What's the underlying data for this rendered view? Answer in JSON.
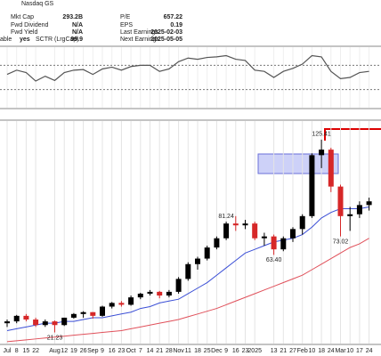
{
  "header": {
    "exchange": "Nasdaq GS",
    "side": {
      "label": "able",
      "value": "yes"
    },
    "fields": [
      [
        {
          "label": "Mkt Cap",
          "value": "293.2B"
        },
        {
          "label": "P/E",
          "value": "657.22"
        }
      ],
      [
        {
          "label": "Fwd Dividend",
          "value": "N/A"
        },
        {
          "label": "EPS",
          "value": "0.19"
        }
      ],
      [
        {
          "label": "Fwd Yield",
          "value": "N/A"
        },
        {
          "label": "Last Earnings",
          "value": "2025-02-03"
        }
      ],
      [
        {
          "label": "SCTR (LrgCap)",
          "value": "99.9"
        },
        {
          "label": "Next Earnings",
          "value": "2025-05-05"
        }
      ]
    ]
  },
  "chart_data": {
    "type": "candlestick",
    "categories": [
      "Jul",
      "8",
      "15",
      "22",
      null,
      "Aug",
      "12",
      "19",
      "26",
      "Sep",
      "9",
      "16",
      "23",
      "Oct",
      "7",
      "14",
      "21",
      "28",
      "Nov",
      "11",
      "18",
      "25",
      "Dec",
      "9",
      "16",
      "23",
      "2025",
      null,
      "13",
      "21",
      "27",
      "Feb",
      "10",
      "18",
      "24",
      "Mar",
      "10",
      "17",
      "24"
    ],
    "open": [
      26,
      27,
      30,
      28,
      25,
      27,
      25,
      29,
      31,
      32,
      30,
      35,
      37,
      36,
      40,
      42,
      43,
      41,
      43,
      50,
      58,
      61,
      67,
      72,
      80,
      79,
      80,
      72,
      73,
      66,
      72,
      77,
      84,
      117,
      120,
      100,
      84,
      85,
      90
    ],
    "high": [
      28,
      30.5,
      31,
      29,
      28,
      27.5,
      29,
      31.5,
      32.5,
      32,
      35.5,
      37.5,
      38,
      41,
      42.5,
      44,
      43.5,
      44,
      51,
      59,
      62,
      68,
      73,
      81,
      84,
      82,
      81,
      75,
      74,
      73,
      78,
      85,
      118,
      125.41,
      121,
      101,
      89,
      92,
      94
    ],
    "low": [
      24,
      26,
      27,
      24,
      24,
      21,
      24.5,
      28.5,
      29,
      28.5,
      29.5,
      34,
      35,
      35.5,
      39,
      41,
      39.5,
      40,
      42,
      49,
      55,
      60,
      66,
      71,
      76,
      77,
      71,
      68,
      63,
      65,
      70,
      74,
      83,
      110,
      97,
      73,
      76,
      83,
      87
    ],
    "close": [
      27,
      30,
      28,
      25,
      27,
      25,
      29,
      31,
      32,
      30,
      35,
      37,
      36,
      40,
      42,
      43,
      41,
      43,
      50,
      58,
      61,
      67,
      72,
      80,
      79,
      80,
      72,
      73,
      66,
      72,
      77,
      84,
      117,
      120,
      100,
      84,
      85,
      90,
      92
    ],
    "up_color": "#000000",
    "down_color": "#d62728",
    "series": [
      {
        "color": "#3b4fd6",
        "values": [
          22,
          23,
          24,
          25,
          26,
          26,
          27,
          27,
          28,
          29,
          29,
          30,
          31,
          32,
          34,
          35,
          37,
          38,
          39,
          42,
          45,
          48,
          52,
          56,
          60,
          64,
          66,
          68,
          70,
          71,
          72,
          74,
          78,
          83,
          86,
          88,
          88,
          88,
          89
        ]
      },
      {
        "color": "#e0505a",
        "values": [
          16,
          16.5,
          17,
          17.5,
          18,
          18.5,
          19,
          19.5,
          20,
          20.5,
          21,
          21.5,
          22,
          23,
          24,
          25,
          26,
          27,
          28,
          29.5,
          31,
          32.5,
          34,
          36,
          38,
          40,
          42,
          44,
          46,
          48,
          50,
          52,
          55,
          58,
          61,
          64,
          67,
          69,
          72
        ]
      }
    ],
    "annotations": [
      {
        "candle": 5,
        "side": "low",
        "text": "21.23"
      },
      {
        "candle": 23,
        "side": "high",
        "text": "81.24"
      },
      {
        "candle": 28,
        "side": "low",
        "text": "63.40"
      },
      {
        "candle": 33,
        "side": "high",
        "text": "125.41"
      },
      {
        "candle": 35,
        "side": "low",
        "text": "73.02"
      }
    ],
    "ylim": [
      15,
      135
    ],
    "rsi": {
      "values": [
        55,
        62,
        58,
        44,
        52,
        45,
        58,
        62,
        63,
        55,
        64,
        67,
        62,
        68,
        70,
        70,
        60,
        64,
        76,
        82,
        80,
        83,
        84,
        86,
        80,
        78,
        62,
        60,
        50,
        60,
        65,
        72,
        86,
        84,
        60,
        48,
        50,
        58,
        60
      ],
      "ylim": [
        0,
        100
      ],
      "levels": [
        70,
        30
      ],
      "color": "#555555"
    }
  }
}
